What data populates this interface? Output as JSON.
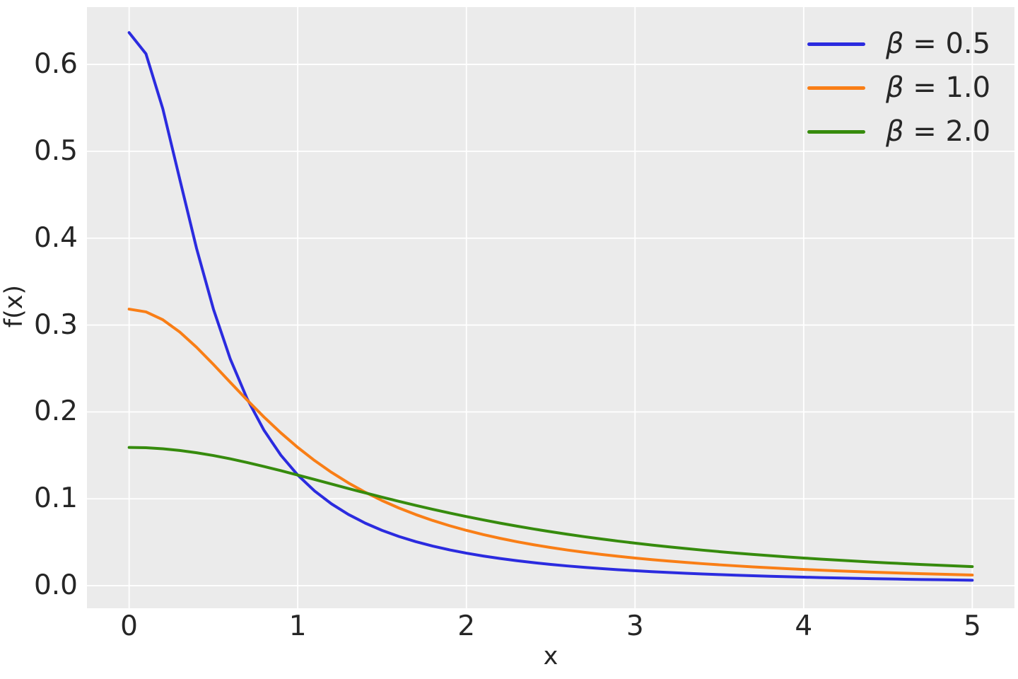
{
  "colors": {
    "figure_background": "#ffffff",
    "plot_background": "#ebebeb",
    "grid": "#ffffff",
    "text": "#262626"
  },
  "chart_data": {
    "type": "line",
    "title": "",
    "xlabel": "x",
    "ylabel": "f(x)",
    "xlim": [
      -0.25,
      5.25
    ],
    "ylim": [
      -0.026,
      0.666
    ],
    "grid": true,
    "legend_position": "upper right",
    "xticks": {
      "values": [
        0,
        1,
        2,
        3,
        4,
        5
      ],
      "labels": [
        "0",
        "1",
        "2",
        "3",
        "4",
        "5"
      ]
    },
    "yticks": {
      "values": [
        0.0,
        0.1,
        0.2,
        0.3,
        0.4,
        0.5,
        0.6
      ],
      "labels": [
        "0.0",
        "0.1",
        "0.2",
        "0.3",
        "0.4",
        "0.5",
        "0.6"
      ]
    },
    "x": [
      0.0,
      0.1,
      0.2,
      0.3,
      0.4,
      0.5,
      0.6,
      0.7,
      0.8,
      0.9,
      1.0,
      1.1,
      1.2,
      1.3,
      1.4,
      1.5,
      1.6,
      1.7,
      1.8,
      1.9,
      2.0,
      2.1,
      2.2,
      2.3,
      2.4,
      2.5,
      2.6,
      2.7,
      2.8,
      2.9,
      3.0,
      3.1,
      3.2,
      3.3,
      3.4,
      3.5,
      3.6,
      3.7,
      3.8,
      3.9,
      4.0,
      4.1,
      4.2,
      4.3,
      4.4,
      4.5,
      4.6,
      4.7,
      4.8,
      4.9,
      5.0
    ],
    "series": [
      {
        "name": "β = 0.5",
        "beta": 0.5,
        "color": "#2b2bdf",
        "values": [
          0.63662,
          0.61214,
          0.54881,
          0.4681,
          0.38818,
          0.31831,
          0.26091,
          0.21508,
          0.17883,
          0.15015,
          0.12732,
          0.10901,
          0.09418,
          0.08204,
          0.07201,
          0.06366,
          0.05664,
          0.05068,
          0.0456,
          0.04123,
          0.03745,
          0.03415,
          0.03127,
          0.02873,
          0.02648,
          0.02449,
          0.0227,
          0.02111,
          0.01967,
          0.01838,
          0.01721,
          0.01614,
          0.01517,
          0.01429,
          0.01348,
          0.01273,
          0.01205,
          0.01142,
          0.01083,
          0.01029,
          0.00979,
          0.00933,
          0.0089,
          0.00849,
          0.00812,
          0.00776,
          0.00743,
          0.00712,
          0.00683,
          0.00656,
          0.0063
        ]
      },
      {
        "name": "β = 1.0",
        "beta": 1.0,
        "color": "#f97e16",
        "values": [
          0.31831,
          0.31516,
          0.30607,
          0.29203,
          0.27441,
          0.25465,
          0.23405,
          0.21363,
          0.19409,
          0.17586,
          0.15915,
          0.14403,
          0.13045,
          0.11833,
          0.10754,
          0.09794,
          0.08941,
          0.08183,
          0.07508,
          0.06905,
          0.06366,
          0.05884,
          0.0545,
          0.05061,
          0.04709,
          0.0439,
          0.04102,
          0.0384,
          0.03601,
          0.03383,
          0.03183,
          0.03,
          0.02832,
          0.02677,
          0.02534,
          0.02402,
          0.0228,
          0.02167,
          0.02062,
          0.01964,
          0.01872,
          0.01787,
          0.01708,
          0.01633,
          0.01563,
          0.01498,
          0.01436,
          0.01379,
          0.01324,
          0.01273,
          0.01224
        ]
      },
      {
        "name": "β = 2.0",
        "beta": 2.0,
        "color": "#368b0d",
        "values": [
          0.15915,
          0.15876,
          0.15758,
          0.15565,
          0.15303,
          0.14979,
          0.14601,
          0.14179,
          0.1372,
          0.13235,
          0.12732,
          0.12219,
          0.11703,
          0.11188,
          0.10681,
          0.10186,
          0.09705,
          0.09239,
          0.08793,
          0.08366,
          0.07958,
          0.0757,
          0.07201,
          0.06853,
          0.06523,
          0.06211,
          0.05916,
          0.05639,
          0.05377,
          0.0513,
          0.04897,
          0.04678,
          0.04471,
          0.04275,
          0.04091,
          0.03917,
          0.03754,
          0.03599,
          0.03452,
          0.03314,
          0.03183,
          0.03059,
          0.02942,
          0.02831,
          0.02725,
          0.02625,
          0.0253,
          0.0244,
          0.02354,
          0.02273,
          0.02195
        ]
      }
    ]
  }
}
